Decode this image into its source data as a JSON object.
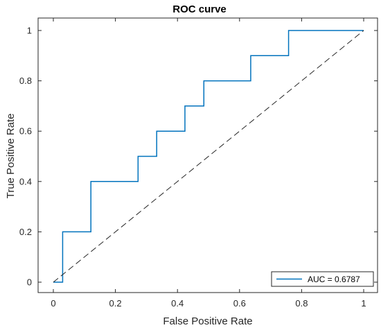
{
  "chart_data": {
    "type": "line",
    "title": "ROC curve",
    "xlabel": "False Positive Rate",
    "ylabel": "True Positive Rate",
    "xlim": [
      0,
      1
    ],
    "ylim": [
      0,
      1
    ],
    "x_ticks": [
      0,
      0.2,
      0.4,
      0.6,
      0.8,
      1
    ],
    "y_ticks": [
      0,
      0.2,
      0.4,
      0.6,
      0.8,
      1
    ],
    "x_tick_labels": [
      "0",
      "0.2",
      "0.4",
      "0.6",
      "0.8",
      "1"
    ],
    "y_tick_labels": [
      "0",
      "0.2",
      "0.4",
      "0.6",
      "0.8",
      "1"
    ],
    "grid": false,
    "legend_position": "bottom-right",
    "series": [
      {
        "name": "AUC = 0.6787",
        "color": "#0072BD",
        "style": "solid",
        "points": [
          [
            0,
            0
          ],
          [
            0.03,
            0
          ],
          [
            0.03,
            0.2
          ],
          [
            0.121,
            0.2
          ],
          [
            0.121,
            0.4
          ],
          [
            0.273,
            0.4
          ],
          [
            0.273,
            0.5
          ],
          [
            0.333,
            0.5
          ],
          [
            0.333,
            0.6
          ],
          [
            0.424,
            0.6
          ],
          [
            0.424,
            0.7
          ],
          [
            0.485,
            0.7
          ],
          [
            0.485,
            0.8
          ],
          [
            0.636,
            0.8
          ],
          [
            0.636,
            0.9
          ],
          [
            0.758,
            0.9
          ],
          [
            0.758,
            1
          ],
          [
            1,
            1
          ]
        ]
      },
      {
        "color": "#262626",
        "style": "dashed",
        "points": [
          [
            0,
            0
          ],
          [
            1,
            1
          ]
        ]
      }
    ]
  }
}
